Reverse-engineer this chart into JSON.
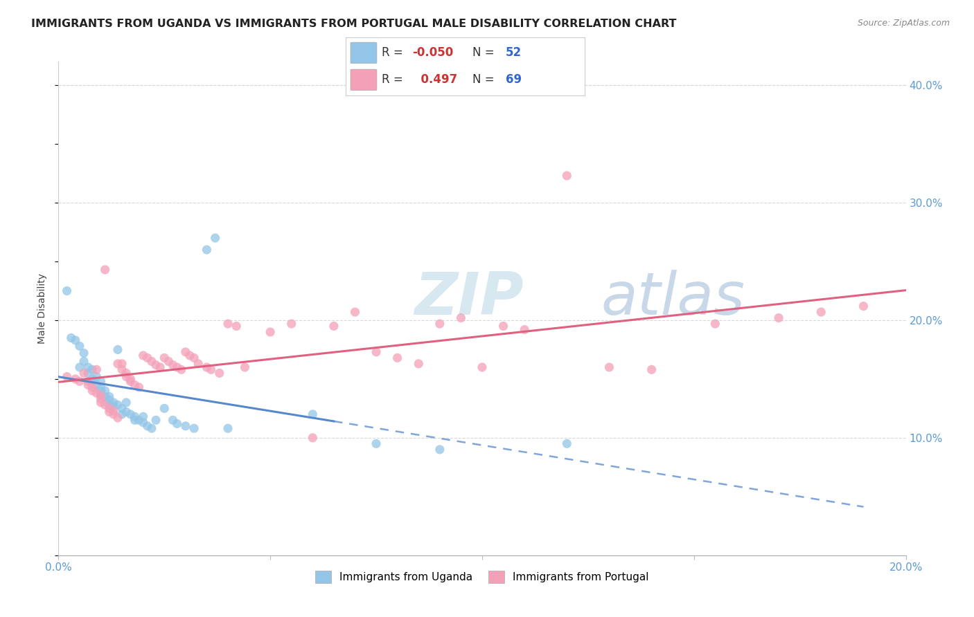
{
  "title": "IMMIGRANTS FROM UGANDA VS IMMIGRANTS FROM PORTUGAL MALE DISABILITY CORRELATION CHART",
  "source": "Source: ZipAtlas.com",
  "ylabel": "Male Disability",
  "x_min": 0.0,
  "x_max": 0.2,
  "y_min": 0.0,
  "y_max": 0.42,
  "y_ticks": [
    0.1,
    0.2,
    0.3,
    0.4
  ],
  "y_tick_labels": [
    "10.0%",
    "20.0%",
    "30.0%",
    "40.0%"
  ],
  "uganda_color": "#93c5e8",
  "portugal_color": "#f4a0b8",
  "uganda_line_color": "#5588cc",
  "portugal_line_color": "#e06080",
  "uganda_R": -0.05,
  "uganda_N": 52,
  "portugal_R": 0.497,
  "portugal_N": 69,
  "legend_label_uganda": "Immigrants from Uganda",
  "legend_label_portugal": "Immigrants from Portugal",
  "watermark_zip": "ZIP",
  "watermark_atlas": "atlas",
  "uganda_scatter": [
    [
      0.002,
      0.225
    ],
    [
      0.003,
      0.185
    ],
    [
      0.004,
      0.183
    ],
    [
      0.005,
      0.178
    ],
    [
      0.005,
      0.16
    ],
    [
      0.006,
      0.172
    ],
    [
      0.006,
      0.165
    ],
    [
      0.007,
      0.16
    ],
    [
      0.007,
      0.155
    ],
    [
      0.008,
      0.158
    ],
    [
      0.008,
      0.15
    ],
    [
      0.008,
      0.148
    ],
    [
      0.009,
      0.152
    ],
    [
      0.009,
      0.145
    ],
    [
      0.01,
      0.148
    ],
    [
      0.01,
      0.143
    ],
    [
      0.01,
      0.14
    ],
    [
      0.01,
      0.137
    ],
    [
      0.011,
      0.14
    ],
    [
      0.011,
      0.135
    ],
    [
      0.012,
      0.135
    ],
    [
      0.012,
      0.132
    ],
    [
      0.012,
      0.128
    ],
    [
      0.013,
      0.13
    ],
    [
      0.013,
      0.127
    ],
    [
      0.014,
      0.175
    ],
    [
      0.014,
      0.128
    ],
    [
      0.015,
      0.125
    ],
    [
      0.015,
      0.12
    ],
    [
      0.016,
      0.13
    ],
    [
      0.016,
      0.122
    ],
    [
      0.017,
      0.12
    ],
    [
      0.018,
      0.118
    ],
    [
      0.018,
      0.115
    ],
    [
      0.019,
      0.115
    ],
    [
      0.02,
      0.113
    ],
    [
      0.02,
      0.118
    ],
    [
      0.021,
      0.11
    ],
    [
      0.022,
      0.108
    ],
    [
      0.023,
      0.115
    ],
    [
      0.025,
      0.125
    ],
    [
      0.027,
      0.115
    ],
    [
      0.028,
      0.112
    ],
    [
      0.03,
      0.11
    ],
    [
      0.032,
      0.108
    ],
    [
      0.035,
      0.26
    ],
    [
      0.037,
      0.27
    ],
    [
      0.04,
      0.108
    ],
    [
      0.06,
      0.12
    ],
    [
      0.075,
      0.095
    ],
    [
      0.09,
      0.09
    ],
    [
      0.12,
      0.095
    ]
  ],
  "portugal_scatter": [
    [
      0.002,
      0.152
    ],
    [
      0.004,
      0.15
    ],
    [
      0.005,
      0.148
    ],
    [
      0.006,
      0.155
    ],
    [
      0.007,
      0.148
    ],
    [
      0.007,
      0.145
    ],
    [
      0.008,
      0.143
    ],
    [
      0.008,
      0.14
    ],
    [
      0.009,
      0.138
    ],
    [
      0.009,
      0.158
    ],
    [
      0.01,
      0.136
    ],
    [
      0.01,
      0.133
    ],
    [
      0.01,
      0.13
    ],
    [
      0.011,
      0.128
    ],
    [
      0.011,
      0.243
    ],
    [
      0.012,
      0.125
    ],
    [
      0.012,
      0.122
    ],
    [
      0.013,
      0.123
    ],
    [
      0.013,
      0.12
    ],
    [
      0.014,
      0.163
    ],
    [
      0.014,
      0.117
    ],
    [
      0.015,
      0.163
    ],
    [
      0.015,
      0.158
    ],
    [
      0.016,
      0.155
    ],
    [
      0.016,
      0.152
    ],
    [
      0.017,
      0.15
    ],
    [
      0.017,
      0.148
    ],
    [
      0.018,
      0.145
    ],
    [
      0.019,
      0.143
    ],
    [
      0.02,
      0.17
    ],
    [
      0.021,
      0.168
    ],
    [
      0.022,
      0.165
    ],
    [
      0.023,
      0.162
    ],
    [
      0.024,
      0.16
    ],
    [
      0.025,
      0.168
    ],
    [
      0.026,
      0.165
    ],
    [
      0.027,
      0.162
    ],
    [
      0.028,
      0.16
    ],
    [
      0.029,
      0.158
    ],
    [
      0.03,
      0.173
    ],
    [
      0.031,
      0.17
    ],
    [
      0.032,
      0.168
    ],
    [
      0.033,
      0.163
    ],
    [
      0.035,
      0.16
    ],
    [
      0.036,
      0.158
    ],
    [
      0.038,
      0.155
    ],
    [
      0.04,
      0.197
    ],
    [
      0.042,
      0.195
    ],
    [
      0.044,
      0.16
    ],
    [
      0.05,
      0.19
    ],
    [
      0.055,
      0.197
    ],
    [
      0.06,
      0.1
    ],
    [
      0.065,
      0.195
    ],
    [
      0.07,
      0.207
    ],
    [
      0.075,
      0.173
    ],
    [
      0.08,
      0.168
    ],
    [
      0.085,
      0.163
    ],
    [
      0.09,
      0.197
    ],
    [
      0.095,
      0.202
    ],
    [
      0.1,
      0.16
    ],
    [
      0.105,
      0.195
    ],
    [
      0.11,
      0.192
    ],
    [
      0.12,
      0.323
    ],
    [
      0.13,
      0.16
    ],
    [
      0.14,
      0.158
    ],
    [
      0.155,
      0.197
    ],
    [
      0.17,
      0.202
    ],
    [
      0.18,
      0.207
    ],
    [
      0.19,
      0.212
    ]
  ]
}
